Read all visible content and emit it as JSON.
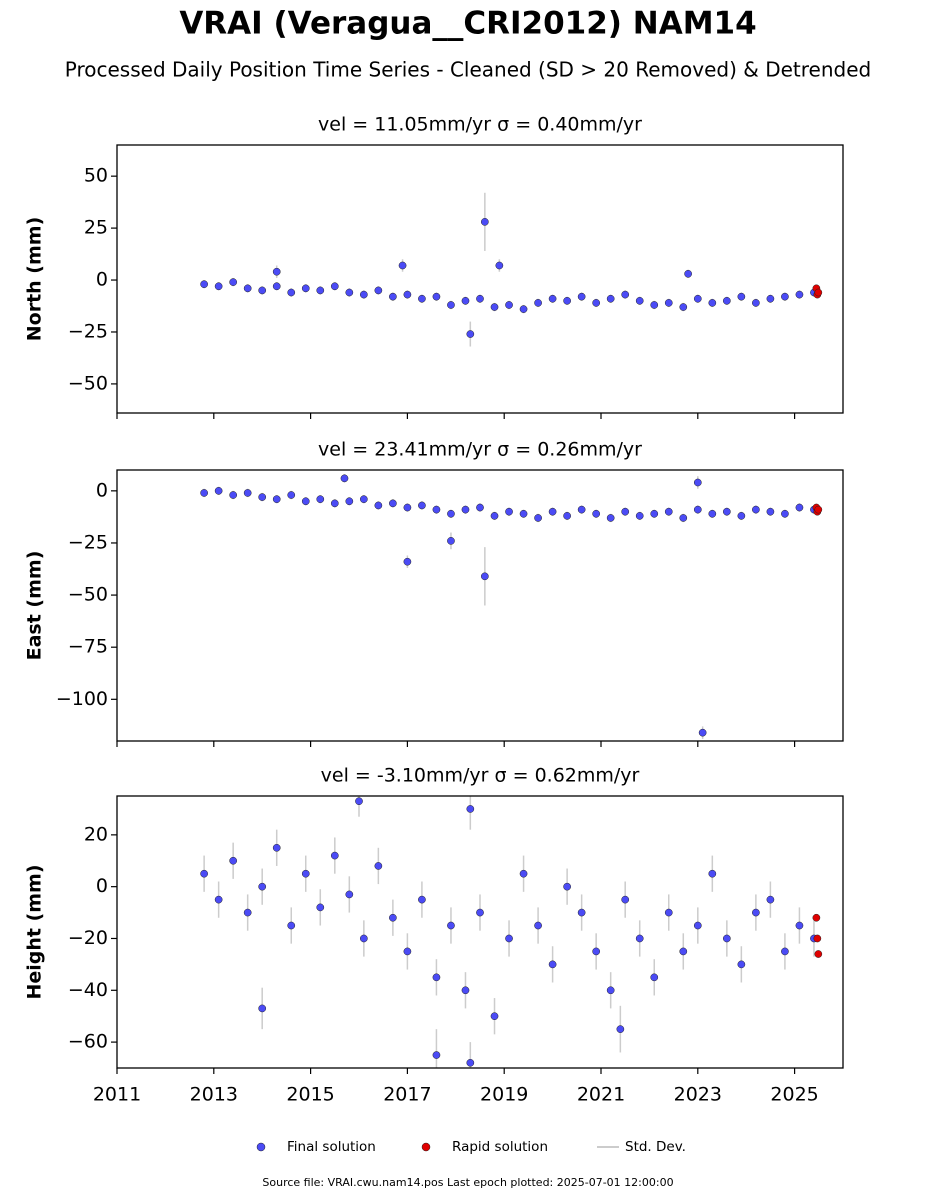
{
  "title": "VRAI (Veragua__CRI2012) NAM14",
  "subtitle": "Processed Daily Position Time Series - Cleaned (SD > 20 Removed) & Detrended",
  "error_label": "Std. Dev.",
  "footer": "Source file: VRAI.cwu.nam14.pos  Last epoch plotted: 2025-07-01 12:00:00",
  "chart_data": [
    {
      "type": "scatter",
      "title": "vel = 11.05mm/yr   σ = 0.40mm/yr",
      "ylabel": "North (mm)",
      "xlim": [
        2011,
        2026
      ],
      "xticks": [
        2011,
        2013,
        2015,
        2017,
        2019,
        2021,
        2023,
        2025
      ],
      "ylim": [
        -64,
        65
      ],
      "yticks": [
        {
          "value": -50,
          "label": "−50"
        },
        {
          "value": -25,
          "label": "−25"
        },
        0,
        25,
        50
      ],
      "series": [
        {
          "name": "Final solution",
          "color": "#4b4bf5",
          "x": [
            2012.8,
            2013.1,
            2013.4,
            2013.7,
            2014.0,
            2014.3,
            2014.6,
            2014.9,
            2015.2,
            2015.5,
            2015.8,
            2016.1,
            2016.4,
            2016.7,
            2017.0,
            2017.3,
            2017.6,
            2017.9,
            2018.2,
            2018.5,
            2018.8,
            2019.1,
            2019.4,
            2019.7,
            2020.0,
            2020.3,
            2020.6,
            2020.9,
            2021.2,
            2021.5,
            2021.8,
            2022.1,
            2022.4,
            2022.7,
            2023.0,
            2023.3,
            2023.6,
            2023.9,
            2024.2,
            2024.5,
            2024.8,
            2025.1,
            2025.4,
            2018.6,
            2018.9,
            2014.3,
            2018.3,
            2016.9,
            2022.8
          ],
          "values": [
            -2,
            -3,
            -1,
            -4,
            -5,
            -3,
            -6,
            -4,
            -5,
            -3,
            -6,
            -7,
            -5,
            -8,
            -7,
            -9,
            -8,
            -12,
            -10,
            -9,
            -13,
            -12,
            -14,
            -11,
            -9,
            -10,
            -8,
            -11,
            -9,
            -7,
            -10,
            -12,
            -11,
            -13,
            -9,
            -11,
            -10,
            -8,
            -11,
            -9,
            -8,
            -7,
            -6,
            28,
            7,
            4,
            -26,
            7,
            3
          ],
          "errors": [
            2,
            2,
            2,
            2,
            2,
            2,
            2,
            2,
            2,
            2,
            2,
            2,
            2,
            2,
            2,
            2,
            2,
            2,
            2,
            2,
            2,
            2,
            2,
            2,
            2,
            2,
            2,
            2,
            2,
            2,
            2,
            2,
            2,
            2,
            2,
            2,
            2,
            2,
            2,
            2,
            2,
            2,
            2,
            14,
            3,
            3,
            6,
            3,
            2
          ]
        },
        {
          "name": "Rapid solution",
          "color": "#e00000",
          "x": [
            2025.45,
            2025.47,
            2025.49
          ],
          "values": [
            -4,
            -7,
            -6
          ]
        }
      ]
    },
    {
      "type": "scatter",
      "title": "vel = 23.41mm/yr   σ = 0.26mm/yr",
      "ylabel": "East (mm)",
      "xlim": [
        2011,
        2026
      ],
      "xticks": [
        2011,
        2013,
        2015,
        2017,
        2019,
        2021,
        2023,
        2025
      ],
      "ylim": [
        -120,
        10
      ],
      "yticks": [
        {
          "value": -100,
          "label": "−100"
        },
        {
          "value": -75,
          "label": "−75"
        },
        {
          "value": -50,
          "label": "−50"
        },
        {
          "value": -25,
          "label": "−25"
        },
        0
      ],
      "series": [
        {
          "name": "Final solution",
          "color": "#4b4bf5",
          "x": [
            2012.8,
            2013.1,
            2013.4,
            2013.7,
            2014.0,
            2014.3,
            2014.6,
            2014.9,
            2015.2,
            2015.5,
            2015.8,
            2016.1,
            2016.4,
            2016.7,
            2017.0,
            2017.3,
            2017.6,
            2017.9,
            2018.2,
            2018.5,
            2018.8,
            2019.1,
            2019.4,
            2019.7,
            2020.0,
            2020.3,
            2020.6,
            2020.9,
            2021.2,
            2021.5,
            2021.8,
            2022.1,
            2022.4,
            2022.7,
            2023.0,
            2023.3,
            2023.6,
            2023.9,
            2024.2,
            2024.5,
            2024.8,
            2025.1,
            2025.4,
            2017.0,
            2018.6,
            2023.1,
            2023.0,
            2015.7,
            2017.9
          ],
          "values": [
            -1,
            0,
            -2,
            -1,
            -3,
            -4,
            -2,
            -5,
            -4,
            -6,
            -5,
            -4,
            -7,
            -6,
            -8,
            -7,
            -9,
            -11,
            -9,
            -8,
            -12,
            -10,
            -11,
            -13,
            -10,
            -12,
            -9,
            -11,
            -13,
            -10,
            -12,
            -11,
            -10,
            -13,
            -9,
            -11,
            -10,
            -12,
            -9,
            -10,
            -11,
            -8,
            -9,
            -34,
            -41,
            -116,
            4,
            6,
            -24
          ],
          "errors": [
            2,
            2,
            2,
            2,
            2,
            2,
            2,
            2,
            2,
            2,
            2,
            2,
            2,
            2,
            2,
            2,
            2,
            2,
            2,
            2,
            2,
            2,
            2,
            2,
            2,
            2,
            2,
            2,
            2,
            2,
            2,
            2,
            2,
            2,
            2,
            2,
            2,
            2,
            2,
            2,
            2,
            2,
            2,
            3,
            14,
            3,
            3,
            2,
            4
          ]
        },
        {
          "name": "Rapid solution",
          "color": "#e00000",
          "x": [
            2025.45,
            2025.47,
            2025.49
          ],
          "values": [
            -8,
            -10,
            -9
          ]
        }
      ]
    },
    {
      "type": "scatter",
      "title": "vel = -3.10mm/yr   σ = 0.62mm/yr",
      "ylabel": "Height (mm)",
      "xlim": [
        2011,
        2026
      ],
      "xticks": [
        2011,
        2013,
        2015,
        2017,
        2019,
        2021,
        2023,
        2025
      ],
      "ylim": [
        -70,
        35
      ],
      "yticks": [
        {
          "value": -60,
          "label": "−60"
        },
        {
          "value": -40,
          "label": "−40"
        },
        {
          "value": -20,
          "label": "−20"
        },
        0,
        20
      ],
      "series": [
        {
          "name": "Final solution",
          "color": "#4b4bf5",
          "x": [
            2012.8,
            2013.1,
            2013.4,
            2013.7,
            2014.0,
            2014.3,
            2014.6,
            2014.9,
            2015.2,
            2015.5,
            2015.8,
            2016.1,
            2016.4,
            2016.7,
            2017.0,
            2017.3,
            2017.6,
            2017.9,
            2018.2,
            2018.5,
            2018.8,
            2019.1,
            2019.4,
            2019.7,
            2020.0,
            2020.3,
            2020.6,
            2020.9,
            2021.2,
            2021.5,
            2021.8,
            2022.1,
            2022.4,
            2022.7,
            2023.0,
            2023.3,
            2023.6,
            2023.9,
            2024.2,
            2024.5,
            2024.8,
            2025.1,
            2025.4,
            2016.0,
            2018.3,
            2017.6,
            2018.3,
            2021.4,
            2014.0
          ],
          "values": [
            5,
            -5,
            10,
            -10,
            0,
            15,
            -15,
            5,
            -8,
            12,
            -3,
            -20,
            8,
            -12,
            -25,
            -5,
            -35,
            -15,
            -40,
            -10,
            -50,
            -20,
            5,
            -15,
            -30,
            0,
            -10,
            -25,
            -40,
            -5,
            -20,
            -35,
            -10,
            -25,
            -15,
            5,
            -20,
            -30,
            -10,
            -5,
            -25,
            -15,
            -20,
            33,
            30,
            -65,
            -68,
            -55,
            -47
          ],
          "errors": [
            7,
            7,
            7,
            7,
            7,
            7,
            7,
            7,
            7,
            7,
            7,
            7,
            7,
            7,
            7,
            7,
            7,
            7,
            7,
            7,
            7,
            7,
            7,
            7,
            7,
            7,
            7,
            7,
            7,
            7,
            7,
            7,
            7,
            7,
            7,
            7,
            7,
            7,
            7,
            7,
            7,
            7,
            7,
            6,
            8,
            10,
            8,
            9,
            8
          ]
        },
        {
          "name": "Rapid solution",
          "color": "#e00000",
          "x": [
            2025.45,
            2025.47,
            2025.49
          ],
          "values": [
            -12,
            -20,
            -26
          ]
        }
      ]
    }
  ]
}
